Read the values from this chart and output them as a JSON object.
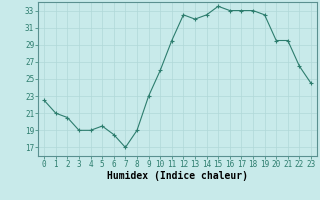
{
  "x": [
    0,
    1,
    2,
    3,
    4,
    5,
    6,
    7,
    8,
    9,
    10,
    11,
    12,
    13,
    14,
    15,
    16,
    17,
    18,
    19,
    20,
    21,
    22,
    23
  ],
  "y": [
    22.5,
    21.0,
    20.5,
    19.0,
    19.0,
    19.5,
    18.5,
    17.0,
    19.0,
    23.0,
    26.0,
    29.5,
    32.5,
    32.0,
    32.5,
    33.5,
    33.0,
    33.0,
    33.0,
    32.5,
    29.5,
    29.5,
    26.5,
    24.5
  ],
  "line_color": "#2d7d6e",
  "marker": "+",
  "marker_size": 3.5,
  "bg_color": "#c8eaea",
  "grid_color": "#b0d8d8",
  "xlabel": "Humidex (Indice chaleur)",
  "ylim": [
    16,
    34
  ],
  "xlim": [
    -0.5,
    23.5
  ],
  "yticks": [
    17,
    19,
    21,
    23,
    25,
    27,
    29,
    31,
    33
  ],
  "xticks": [
    0,
    1,
    2,
    3,
    4,
    5,
    6,
    7,
    8,
    9,
    10,
    11,
    12,
    13,
    14,
    15,
    16,
    17,
    18,
    19,
    20,
    21,
    22,
    23
  ],
  "tick_label_fontsize": 5.5,
  "xlabel_fontsize": 7.0,
  "linewidth": 0.8,
  "spine_color": "#5a9090"
}
